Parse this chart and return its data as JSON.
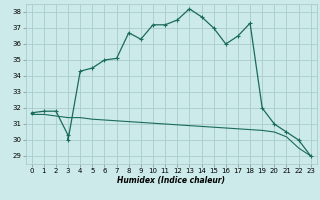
{
  "xlabel": "Humidex (Indice chaleur)",
  "bg_color": "#cceaea",
  "grid_color": "#aacccc",
  "line_color": "#1a6b5a",
  "xlim": [
    -0.5,
    23.5
  ],
  "ylim": [
    28.5,
    38.5
  ],
  "yticks": [
    29,
    30,
    31,
    32,
    33,
    34,
    35,
    36,
    37,
    38
  ],
  "xticks": [
    0,
    1,
    2,
    3,
    4,
    5,
    6,
    7,
    8,
    9,
    10,
    11,
    12,
    13,
    14,
    15,
    16,
    17,
    18,
    19,
    20,
    21,
    22,
    23
  ],
  "line1_x": [
    0,
    1,
    2,
    3,
    3,
    4,
    5,
    6,
    7,
    8,
    9,
    10,
    11,
    12,
    13,
    14,
    15,
    16,
    17,
    18,
    19,
    20,
    21,
    22,
    23
  ],
  "line1_y": [
    31.7,
    31.8,
    31.8,
    30.3,
    30.0,
    34.3,
    34.5,
    35.0,
    35.1,
    36.7,
    36.3,
    37.2,
    37.2,
    37.5,
    38.2,
    37.7,
    37.0,
    36.0,
    36.5,
    37.3,
    32.0,
    31.0,
    30.5,
    30.0,
    29.0
  ],
  "line2_x": [
    0,
    1,
    2,
    3,
    4,
    5,
    6,
    7,
    8,
    9,
    10,
    11,
    12,
    13,
    14,
    15,
    16,
    17,
    18,
    19,
    20,
    21,
    22,
    23
  ],
  "line2_y": [
    31.6,
    31.6,
    31.5,
    31.4,
    31.4,
    31.3,
    31.25,
    31.2,
    31.15,
    31.1,
    31.05,
    31.0,
    30.95,
    30.9,
    30.85,
    30.8,
    30.75,
    30.7,
    30.65,
    30.6,
    30.5,
    30.2,
    29.5,
    29.0
  ],
  "xlabel_fontsize": 5.5,
  "tick_fontsize": 5.0
}
